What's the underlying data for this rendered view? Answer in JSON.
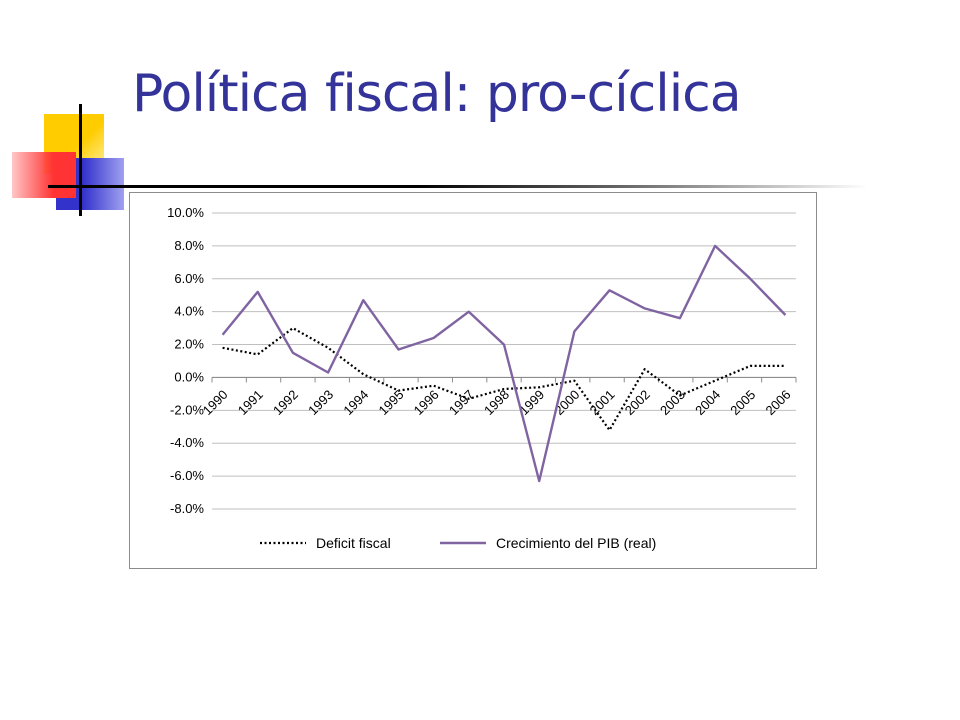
{
  "slide": {
    "title": "Política fiscal: pro-cíclica"
  },
  "colors": {
    "title": "#33339a",
    "logo_yellow": "#ffcc00",
    "logo_red": "#ff3333",
    "logo_blue": "#3333cc",
    "series_deficit": "#000000",
    "series_pib": "#8064a2",
    "grid": "#bfbfbf"
  },
  "chart_data": {
    "type": "line",
    "title": "",
    "xlabel": "",
    "ylabel": "",
    "x": [
      "1990",
      "1991",
      "1992",
      "1993",
      "1994",
      "1995",
      "1996",
      "1997",
      "1998",
      "1999",
      "2000",
      "2001",
      "2002",
      "2003",
      "2004",
      "2005",
      "2006"
    ],
    "yticks": [
      "10.0%",
      "8.0%",
      "6.0%",
      "4.0%",
      "2.0%",
      "0.0%",
      "-2.0%",
      "-4.0%",
      "-6.0%",
      "-8.0%"
    ],
    "ylim": [
      -8,
      10
    ],
    "y_unit": "%",
    "grid": true,
    "legend_position": "bottom",
    "series": [
      {
        "name": "Deficit fiscal",
        "style": "dotted",
        "values": [
          1.8,
          1.4,
          3.0,
          1.8,
          0.2,
          -0.8,
          -0.5,
          -1.3,
          -0.7,
          -0.6,
          -0.2,
          -3.2,
          0.5,
          -1.1,
          -0.2,
          0.7,
          0.7
        ]
      },
      {
        "name": "Crecimiento del PIB (real)",
        "style": "solid",
        "values": [
          2.6,
          5.2,
          1.5,
          0.3,
          4.7,
          1.7,
          2.4,
          4.0,
          2.0,
          -6.3,
          2.8,
          5.3,
          4.2,
          3.6,
          8.0,
          6.0,
          3.8
        ]
      }
    ]
  }
}
